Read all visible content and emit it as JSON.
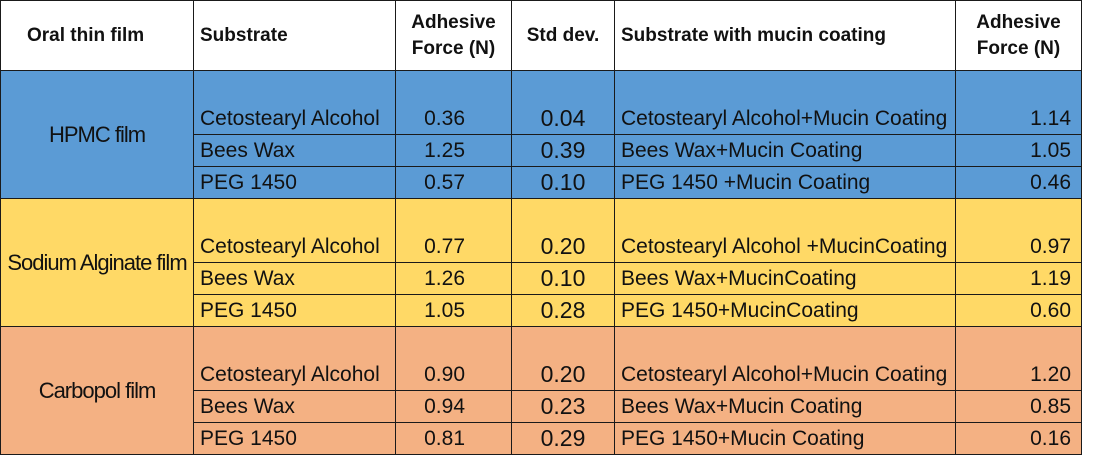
{
  "headers": {
    "oral_film": "Oral thin film",
    "substrate": "Substrate",
    "adhesive_force_1": "Adhesive Force (N)",
    "std_dev": "Std dev.",
    "substrate_mucin": "Substrate with mucin coating",
    "adhesive_force_2": "Adhesive Force (N)"
  },
  "groups": [
    {
      "film": "HPMC film",
      "color": "#5b9bd5",
      "rows": [
        {
          "substrate": "Cetostearyl Alcohol",
          "force": "0.36",
          "sd": "0.04",
          "mucin": "Cetostearyl Alcohol+Mucin Coating",
          "mucin_force": "1.14"
        },
        {
          "substrate": "Bees Wax",
          "force": "1.25",
          "sd": "0.39",
          "mucin": "Bees Wax+Mucin Coating",
          "mucin_force": "1.05"
        },
        {
          "substrate": "PEG 1450",
          "force": "0.57",
          "sd": "0.10",
          "mucin": "PEG 1450 +Mucin Coating",
          "mucin_force": "0.46"
        }
      ]
    },
    {
      "film": "Sodium Alginate film",
      "color": "#ffd966",
      "rows": [
        {
          "substrate": "Cetostearyl Alcohol",
          "force": "0.77",
          "sd": "0.20",
          "mucin": "Cetostearyl Alcohol +MucinCoating",
          "mucin_force": "0.97"
        },
        {
          "substrate": "Bees Wax",
          "force": "1.26",
          "sd": "0.10",
          "mucin": "Bees Wax+MucinCoating",
          "mucin_force": "1.19"
        },
        {
          "substrate": "PEG 1450",
          "force": "1.05",
          "sd": "0.28",
          "mucin": "PEG 1450+MucinCoating",
          "mucin_force": "0.60"
        }
      ]
    },
    {
      "film": "Carbopol film",
      "color": "#f4b183",
      "rows": [
        {
          "substrate": "Cetostearyl Alcohol",
          "force": "0.90",
          "sd": "0.20",
          "mucin": "Cetostearyl Alcohol+Mucin Coating",
          "mucin_force": "1.20"
        },
        {
          "substrate": "Bees Wax",
          "force": "0.94",
          "sd": "0.23",
          "mucin": "Bees Wax+Mucin Coating",
          "mucin_force": "0.85"
        },
        {
          "substrate": "PEG 1450",
          "force": "0.81",
          "sd": "0.29",
          "mucin": "PEG 1450+Mucin Coating",
          "mucin_force": "0.16"
        }
      ]
    }
  ]
}
